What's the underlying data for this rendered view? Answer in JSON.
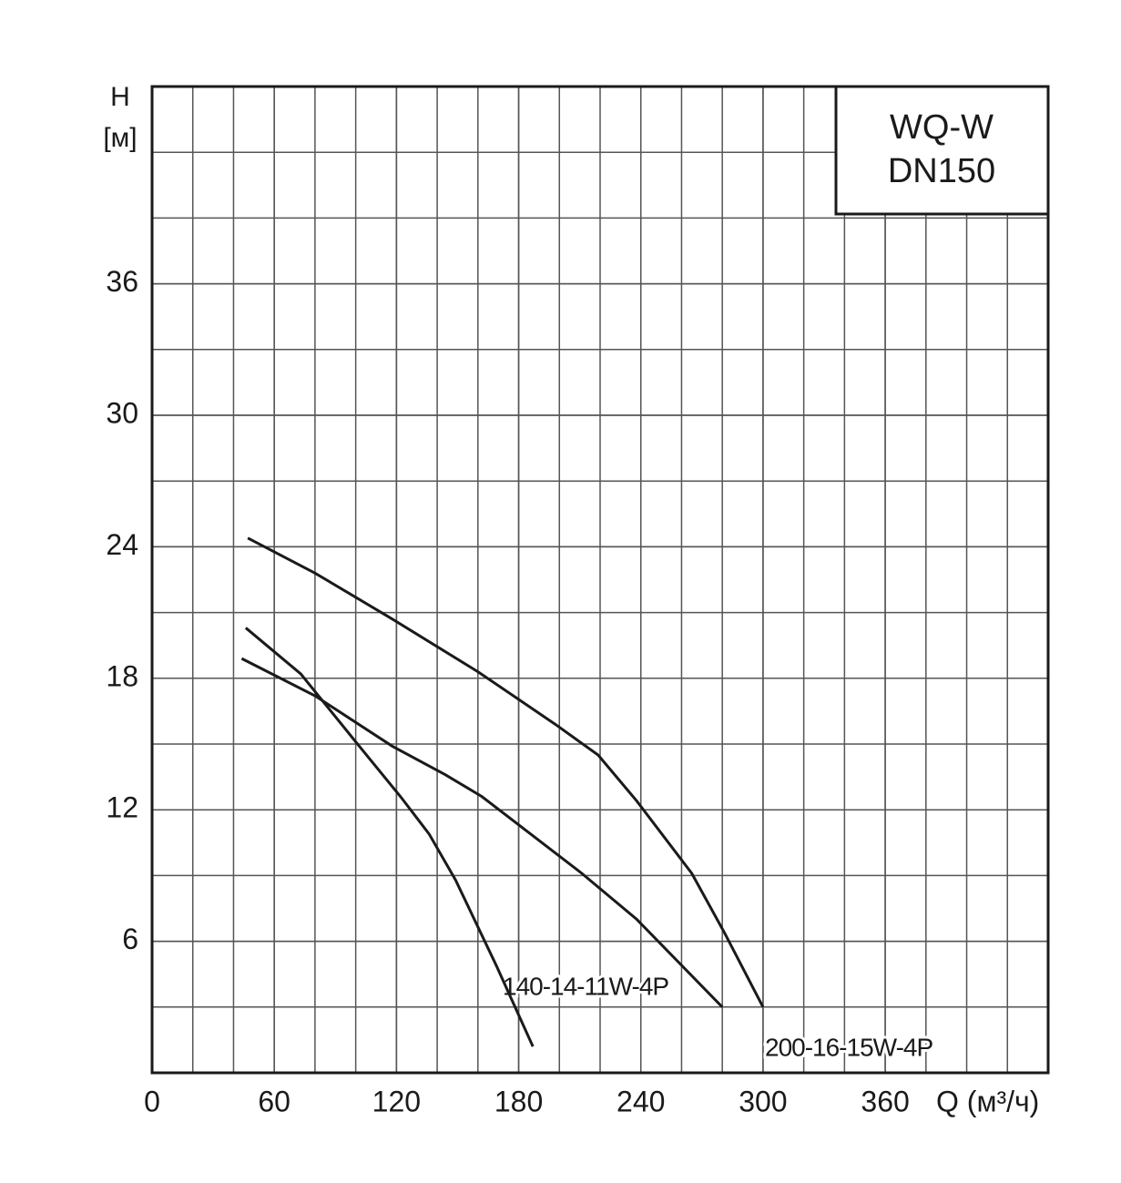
{
  "chart_data": {
    "type": "line",
    "title": "WQ-W",
    "subtitle": "DN150",
    "y_label": "H",
    "y_unit": "[м]",
    "x_label": "Q (м³/ч)",
    "xlim": [
      0,
      440
    ],
    "xticks": [
      0,
      60,
      120,
      180,
      240,
      300,
      360
    ],
    "ylim": [
      0,
      45
    ],
    "yticks": [
      6,
      12,
      18,
      24,
      30,
      36
    ],
    "grid": true,
    "series": [
      {
        "name": "140-14-11W-4P",
        "color": "#1a1a1a",
        "x": [
          44,
          80,
          118,
          144,
          162,
          211,
          238,
          280
        ],
        "values": [
          18.9,
          17.2,
          14.9,
          13.6,
          12.6,
          9.1,
          7.0,
          3.0
        ]
      },
      {
        "name": "200-16-15W-4P",
        "color": "#1a1a1a",
        "x": [
          47,
          80,
          118,
          160,
          198,
          219,
          238,
          265,
          281,
          300
        ],
        "values": [
          24.4,
          22.8,
          20.7,
          18.3,
          15.9,
          14.5,
          12.4,
          9.1,
          6.4,
          3.0
        ]
      },
      {
        "color": "#1a1a1a",
        "x": [
          46,
          73,
          100,
          122,
          136,
          149,
          169,
          187
        ],
        "values": [
          20.3,
          18.2,
          15.1,
          12.6,
          10.9,
          8.8,
          4.9,
          1.2
        ]
      }
    ]
  }
}
